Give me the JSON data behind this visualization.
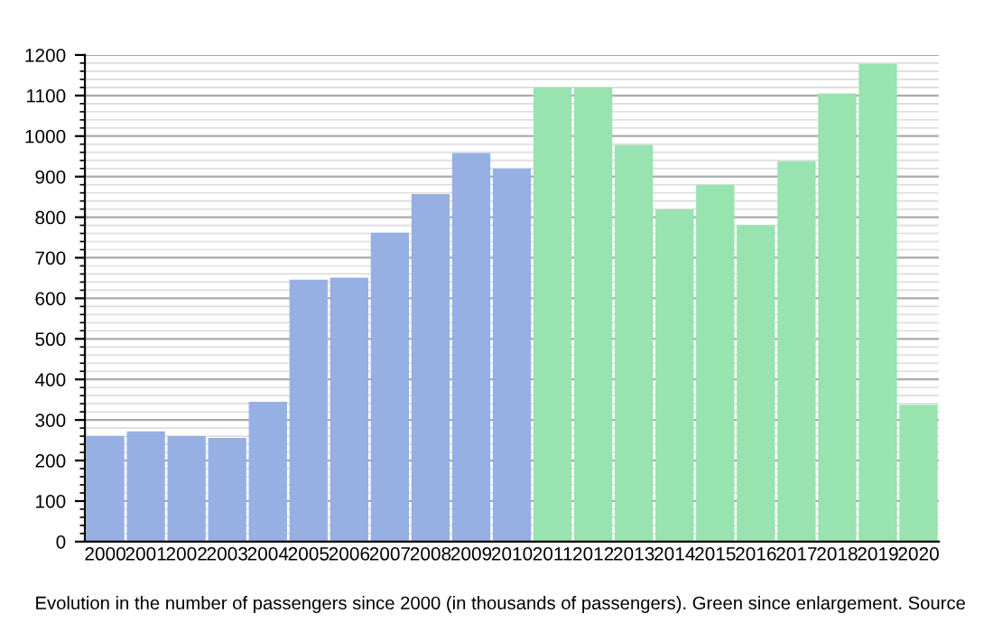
{
  "chart_data": {
    "type": "bar",
    "categories": [
      "2000",
      "2001",
      "2002",
      "2003",
      "2004",
      "2005",
      "2006",
      "2007",
      "2008",
      "2009",
      "2010",
      "2011",
      "2012",
      "2013",
      "2014",
      "2015",
      "2016",
      "2017",
      "2018",
      "2019",
      "2020"
    ],
    "values": [
      260,
      272,
      260,
      256,
      345,
      646,
      651,
      762,
      857,
      958,
      920,
      1120,
      1120,
      978,
      819,
      880,
      780,
      938,
      1105,
      1178,
      337
    ],
    "colors": [
      "#97b0e3",
      "#97b0e3",
      "#97b0e3",
      "#97b0e3",
      "#97b0e3",
      "#97b0e3",
      "#97b0e3",
      "#97b0e3",
      "#97b0e3",
      "#97b0e3",
      "#97b0e3",
      "#98e3b0",
      "#98e3b0",
      "#98e3b0",
      "#98e3b0",
      "#98e3b0",
      "#98e3b0",
      "#98e3b0",
      "#98e3b0",
      "#98e3b0",
      "#98e3b0"
    ],
    "ylim": [
      0,
      1200
    ],
    "yticks": [
      0,
      100,
      200,
      300,
      400,
      500,
      600,
      700,
      800,
      900,
      1000,
      1100,
      1200
    ],
    "grid": "y",
    "annotations": [
      "Evolution in the number of passengers since 2000 (in thousands of passengers). Green since enlargement. Source"
    ]
  }
}
